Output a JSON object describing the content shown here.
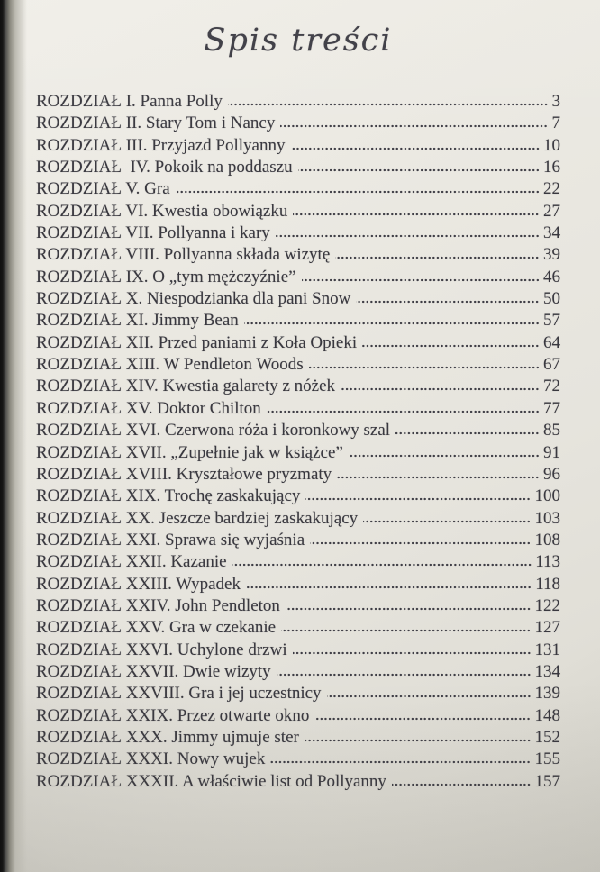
{
  "page": {
    "title": "Spis treści",
    "colors": {
      "paper": "#e8e6df",
      "ink": "#39383f",
      "spine_edge": "#101010"
    }
  },
  "toc": {
    "entries": [
      {
        "label": "ROZDZIAŁ I. Panna Polly",
        "page": "3"
      },
      {
        "label": "ROZDZIAŁ II. Stary Tom i Nancy",
        "page": "7"
      },
      {
        "label": "ROZDZIAŁ III. Przyjazd Pollyanny",
        "page": "10"
      },
      {
        "label": "ROZDZIAŁ  IV. Pokoik na poddaszu",
        "page": "16"
      },
      {
        "label": "ROZDZIAŁ V. Gra",
        "page": "22"
      },
      {
        "label": "ROZDZIAŁ VI. Kwestia obowiązku",
        "page": "27"
      },
      {
        "label": "ROZDZIAŁ VII. Pollyanna i kary",
        "page": "34"
      },
      {
        "label": "ROZDZIAŁ VIII. Pollyanna składa wizytę",
        "page": "39"
      },
      {
        "label": "ROZDZIAŁ IX. O „tym mężczyźnie”",
        "page": "46"
      },
      {
        "label": "ROZDZIAŁ X. Niespodzianka dla pani Snow",
        "page": "50"
      },
      {
        "label": "ROZDZIAŁ XI. Jimmy Bean",
        "page": "57"
      },
      {
        "label": "ROZDZIAŁ XII. Przed paniami z Koła Opieki",
        "page": "64"
      },
      {
        "label": "ROZDZIAŁ XIII. W Pendleton Woods",
        "page": "67"
      },
      {
        "label": "ROZDZIAŁ XIV. Kwestia galarety z nóżek",
        "page": "72"
      },
      {
        "label": "ROZDZIAŁ XV. Doktor Chilton",
        "page": "77"
      },
      {
        "label": "ROZDZIAŁ XVI. Czerwona róża i koronkowy szal",
        "page": "85"
      },
      {
        "label": "ROZDZIAŁ XVII. „Zupełnie jak w książce”",
        "page": "91"
      },
      {
        "label": "ROZDZIAŁ XVIII. Kryształowe pryzmaty",
        "page": "96"
      },
      {
        "label": "ROZDZIAŁ XIX. Trochę zaskakujący",
        "page": "100"
      },
      {
        "label": "ROZDZIAŁ XX. Jeszcze bardziej zaskakujący",
        "page": "103"
      },
      {
        "label": "ROZDZIAŁ XXI. Sprawa się wyjaśnia",
        "page": "108"
      },
      {
        "label": "ROZDZIAŁ XXII. Kazanie",
        "page": "113"
      },
      {
        "label": "ROZDZIAŁ XXIII. Wypadek",
        "page": "118"
      },
      {
        "label": "ROZDZIAŁ XXIV. John Pendleton",
        "page": "122"
      },
      {
        "label": "ROZDZIAŁ XXV. Gra w czekanie",
        "page": "127"
      },
      {
        "label": "ROZDZIAŁ XXVI. Uchylone drzwi",
        "page": "131"
      },
      {
        "label": "ROZDZIAŁ XXVII. Dwie wizyty",
        "page": "134"
      },
      {
        "label": "ROZDZIAŁ XXVIII. Gra i jej uczestnicy",
        "page": "139"
      },
      {
        "label": "ROZDZIAŁ XXIX. Przez otwarte okno",
        "page": "148"
      },
      {
        "label": "ROZDZIAŁ XXX. Jimmy ujmuje ster",
        "page": "152"
      },
      {
        "label": "ROZDZIAŁ XXXI. Nowy wujek",
        "page": "155"
      },
      {
        "label": "ROZDZIAŁ XXXII. A właściwie list od Pollyanny",
        "page": "157"
      }
    ]
  }
}
